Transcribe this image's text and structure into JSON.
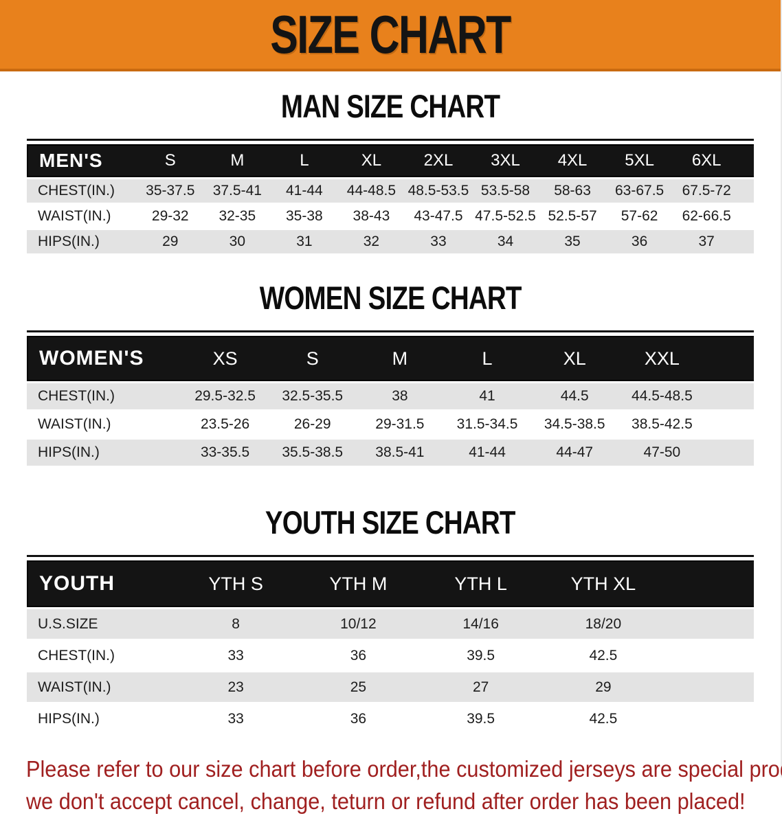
{
  "banner": {
    "title": "SIZE CHART"
  },
  "colors": {
    "banner_orange": "#e8811c",
    "banner_orange_dark": "#c96a10",
    "header_black": "#141414",
    "row_gray": "#e3e3e3",
    "disclaimer_red": "#a02020"
  },
  "tables": [
    {
      "id": "men",
      "title": "MAN SIZE CHART",
      "header": [
        "MEN'S",
        "S",
        "M",
        "L",
        "XL",
        "2XL",
        "3XL",
        "4XL",
        "5XL",
        "6XL"
      ],
      "rows": [
        [
          "CHEST(IN.)",
          "35-37.5",
          "37.5-41",
          "41-44",
          "44-48.5",
          "48.5-53.5",
          "53.5-58",
          "58-63",
          "63-67.5",
          "67.5-72"
        ],
        [
          "WAIST(IN.)",
          "29-32",
          "32-35",
          "35-38",
          "38-43",
          "43-47.5",
          "47.5-52.5",
          "52.5-57",
          "57-62",
          "62-66.5"
        ],
        [
          "HIPS(IN.)",
          "29",
          "30",
          "31",
          "32",
          "33",
          "34",
          "35",
          "36",
          "37"
        ]
      ]
    },
    {
      "id": "women",
      "title": "WOMEN SIZE CHART",
      "header": [
        "WOMEN'S",
        "XS",
        "S",
        "M",
        "L",
        "XL",
        "XXL"
      ],
      "rows": [
        [
          "CHEST(IN.)",
          "29.5-32.5",
          "32.5-35.5",
          "38",
          "41",
          "44.5",
          "44.5-48.5"
        ],
        [
          "WAIST(IN.)",
          "23.5-26",
          "26-29",
          "29-31.5",
          "31.5-34.5",
          "34.5-38.5",
          "38.5-42.5"
        ],
        [
          "HIPS(IN.)",
          "33-35.5",
          "35.5-38.5",
          "38.5-41",
          "41-44",
          "44-47",
          "47-50"
        ]
      ]
    },
    {
      "id": "youth",
      "title": "YOUTH SIZE CHART",
      "header": [
        "YOUTH",
        "YTH S",
        "YTH M",
        "YTH L",
        "YTH XL"
      ],
      "rows": [
        [
          "U.S.SIZE",
          "8",
          "10/12",
          "14/16",
          "18/20"
        ],
        [
          "CHEST(IN.)",
          "33",
          "36",
          "39.5",
          "42.5"
        ],
        [
          "WAIST(IN.)",
          "23",
          "25",
          "27",
          "29"
        ],
        [
          "HIPS(IN.)",
          "33",
          "36",
          "39.5",
          "42.5"
        ]
      ]
    }
  ],
  "disclaimer": {
    "line1": "Please refer to our size chart before order,the customized jerseys are special products,",
    "line2": "we don't accept cancel, change, teturn or refund after order has been placed!"
  }
}
